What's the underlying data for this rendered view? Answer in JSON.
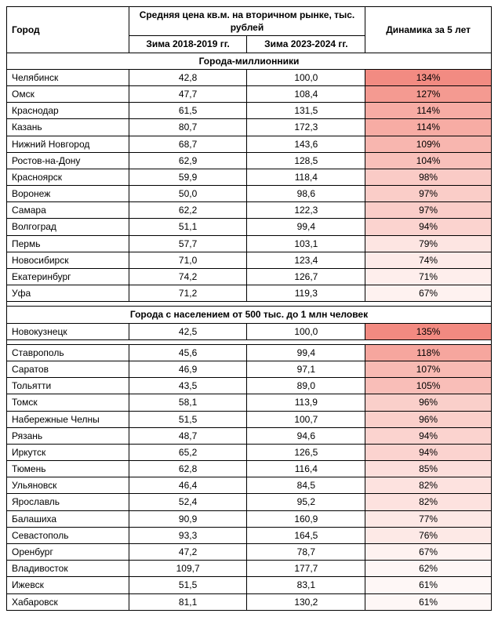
{
  "headers": {
    "city": "Город",
    "price_group": "Средняя цена кв.м. на вторичном рынке, тыс. рублей",
    "period1": "Зима 2018-2019 гг.",
    "period2": "Зима 2023-2024 гг.",
    "dynamics": "Динамика за 5 лет"
  },
  "sections": [
    {
      "title": "Города-миллионники",
      "rows": [
        {
          "city": "Челябинск",
          "p1": "42,8",
          "p2": "100,0",
          "dyn": "134%",
          "dyn_bg": "#f28b82"
        },
        {
          "city": "Омск",
          "p1": "47,7",
          "p2": "108,4",
          "dyn": "127%",
          "dyn_bg": "#f49a91"
        },
        {
          "city": "Краснодар",
          "p1": "61,5",
          "p2": "131,5",
          "dyn": "114%",
          "dyn_bg": "#f7aca4"
        },
        {
          "city": "Казань",
          "p1": "80,7",
          "p2": "172,3",
          "dyn": "114%",
          "dyn_bg": "#f7aca4"
        },
        {
          "city": "Нижний Новгород",
          "p1": "68,7",
          "p2": "143,6",
          "dyn": "109%",
          "dyn_bg": "#f8b6af"
        },
        {
          "city": "Ростов-на-Дону",
          "p1": "62,9",
          "p2": "128,5",
          "dyn": "104%",
          "dyn_bg": "#f9c0ba"
        },
        {
          "city": "Красноярск",
          "p1": "59,9",
          "p2": "118,4",
          "dyn": "98%",
          "dyn_bg": "#facbc6"
        },
        {
          "city": "Воронеж",
          "p1": "50,0",
          "p2": "98,6",
          "dyn": "97%",
          "dyn_bg": "#facdc8"
        },
        {
          "city": "Самара",
          "p1": "62,2",
          "p2": "122,3",
          "dyn": "97%",
          "dyn_bg": "#facdc8"
        },
        {
          "city": "Волгоград",
          "p1": "51,1",
          "p2": "99,4",
          "dyn": "94%",
          "dyn_bg": "#fbd3cf"
        },
        {
          "city": "Пермь",
          "p1": "57,7",
          "p2": "103,1",
          "dyn": "79%",
          "dyn_bg": "#fde5e2"
        },
        {
          "city": "Новосибирск",
          "p1": "71,0",
          "p2": "123,4",
          "dyn": "74%",
          "dyn_bg": "#fdeae8"
        },
        {
          "city": "Екатеринбург",
          "p1": "74,2",
          "p2": "126,7",
          "dyn": "71%",
          "dyn_bg": "#feeeec"
        },
        {
          "city": "Уфа",
          "p1": "71,2",
          "p2": "119,3",
          "dyn": "67%",
          "dyn_bg": "#fef2f0"
        }
      ]
    },
    {
      "title": "Города с населением от 500 тыс. до 1 млн человек",
      "rows": [
        {
          "city": "Новокузнецк",
          "p1": "42,5",
          "p2": "100,0",
          "dyn": "135%",
          "dyn_bg": "#f28a81"
        },
        {
          "city": "Ставрополь",
          "p1": "45,6",
          "p2": "99,4",
          "dyn": "118%",
          "dyn_bg": "#f6a69e"
        },
        {
          "city": "Саратов",
          "p1": "46,9",
          "p2": "97,1",
          "dyn": "107%",
          "dyn_bg": "#f8bab3"
        },
        {
          "city": "Тольятти",
          "p1": "43,5",
          "p2": "89,0",
          "dyn": "105%",
          "dyn_bg": "#f9beb8"
        },
        {
          "city": "Томск",
          "p1": "58,1",
          "p2": "113,9",
          "dyn": "96%",
          "dyn_bg": "#facfca"
        },
        {
          "city": "Набережные Челны",
          "p1": "51,5",
          "p2": "100,7",
          "dyn": "96%",
          "dyn_bg": "#facfca"
        },
        {
          "city": "Рязань",
          "p1": "48,7",
          "p2": "94,6",
          "dyn": "94%",
          "dyn_bg": "#fbd3cf"
        },
        {
          "city": "Иркутск",
          "p1": "65,2",
          "p2": "126,5",
          "dyn": "94%",
          "dyn_bg": "#fbd3cf"
        },
        {
          "city": "Тюмень",
          "p1": "62,8",
          "p2": "116,4",
          "dyn": "85%",
          "dyn_bg": "#fcdedb"
        },
        {
          "city": "Ульяновск",
          "p1": "46,4",
          "p2": "84,5",
          "dyn": "82%",
          "dyn_bg": "#fde2df"
        },
        {
          "city": "Ярославль",
          "p1": "52,4",
          "p2": "95,2",
          "dyn": "82%",
          "dyn_bg": "#fde2df"
        },
        {
          "city": "Балашиха",
          "p1": "90,9",
          "p2": "160,9",
          "dyn": "77%",
          "dyn_bg": "#fde8e5"
        },
        {
          "city": "Севастополь",
          "p1": "93,3",
          "p2": "164,5",
          "dyn": "76%",
          "dyn_bg": "#fde9e6"
        },
        {
          "city": "Оренбург",
          "p1": "47,2",
          "p2": "78,7",
          "dyn": "67%",
          "dyn_bg": "#fef2f0"
        },
        {
          "city": "Владивосток",
          "p1": "109,7",
          "p2": "177,7",
          "dyn": "62%",
          "dyn_bg": "#fef6f5"
        },
        {
          "city": "Ижевск",
          "p1": "51,5",
          "p2": "83,1",
          "dyn": "61%",
          "dyn_bg": "#fef7f6"
        },
        {
          "city": "Хабаровск",
          "p1": "81,1",
          "p2": "130,2",
          "dyn": "61%",
          "dyn_bg": "#fef7f6"
        }
      ]
    }
  ]
}
